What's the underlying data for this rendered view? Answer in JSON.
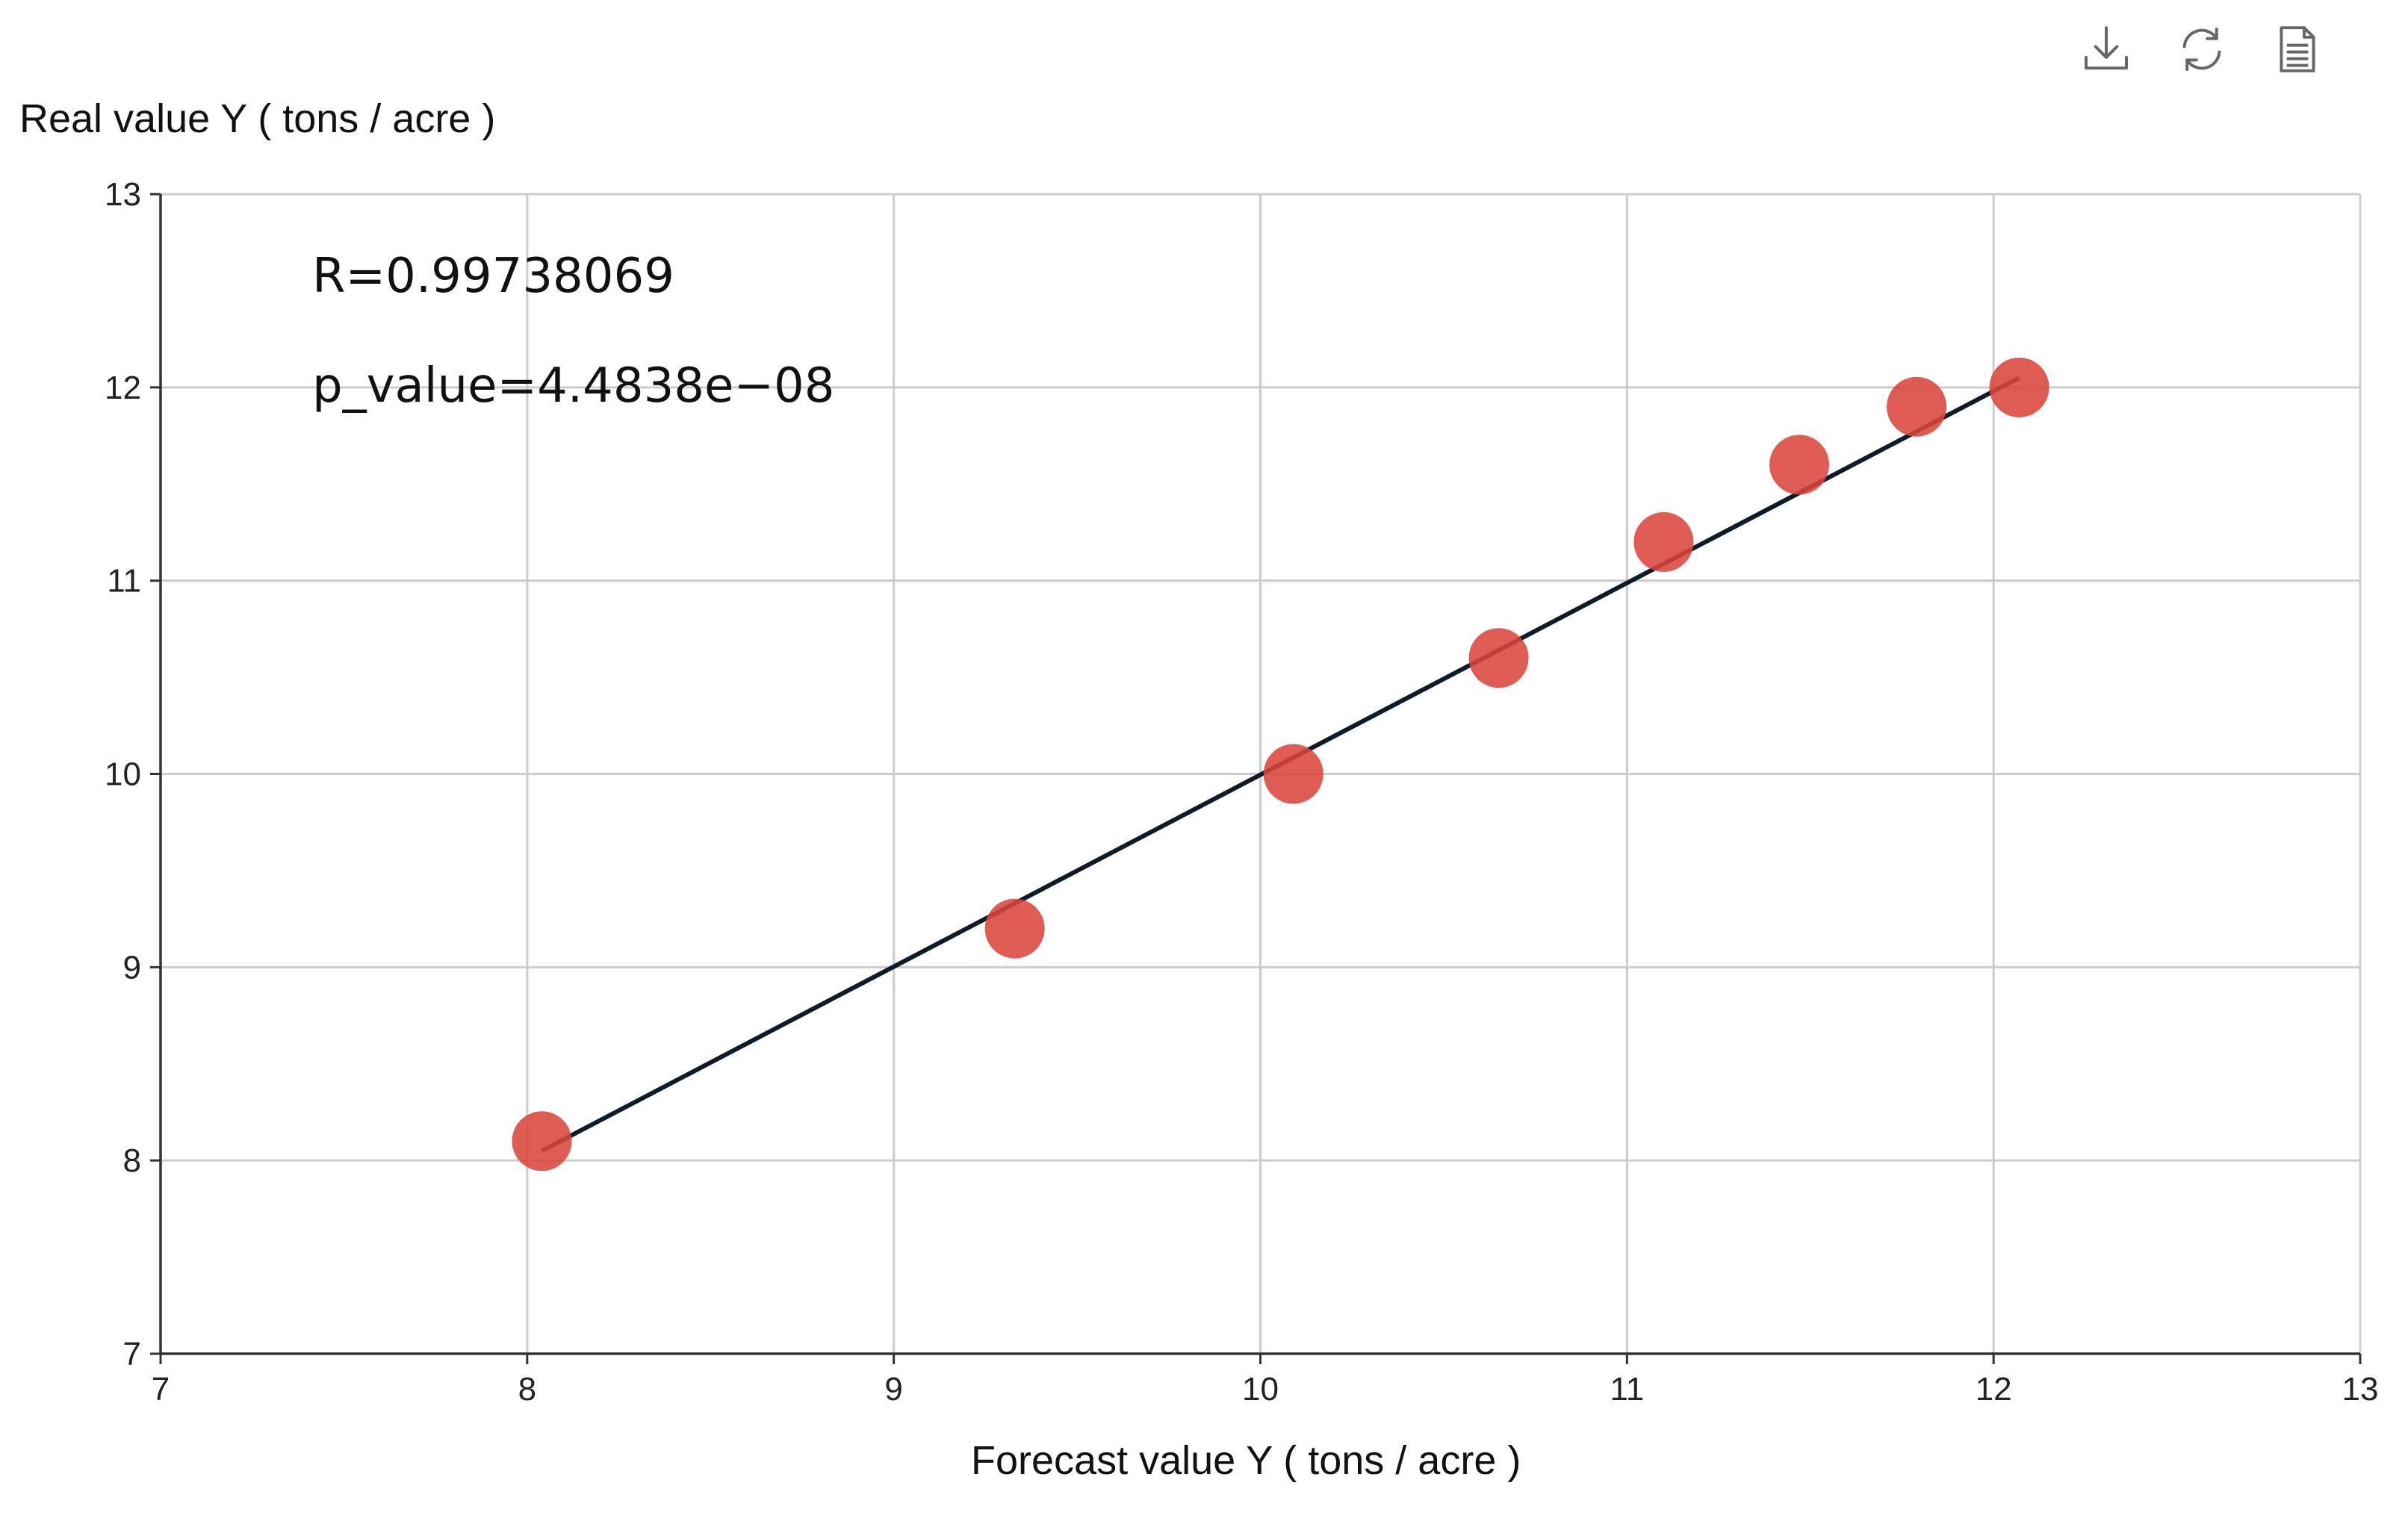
{
  "toolbar": {
    "download_icon": "download-icon",
    "refresh_icon": "refresh-icon",
    "data_view_icon": "document-icon"
  },
  "chart_data": {
    "type": "scatter",
    "xlabel": "Forecast value Y ( tons / acre )",
    "ylabel": "Real value Y ( tons / acre )",
    "xlim": [
      7,
      13
    ],
    "ylim": [
      7,
      13
    ],
    "x_ticks": [
      "7",
      "8",
      "9",
      "10",
      "11",
      "12",
      "13"
    ],
    "y_ticks": [
      "7",
      "8",
      "9",
      "10",
      "11",
      "12",
      "13"
    ],
    "grid": true,
    "annotations": [
      "R=0.99738069",
      "p_value=4.4838e−08"
    ],
    "series": [
      {
        "x": [
          8.04,
          9.33,
          10.09,
          10.65,
          11.1,
          11.47,
          11.79,
          12.07
        ],
        "y": [
          8.1,
          9.2,
          10.0,
          10.6,
          11.2,
          11.6,
          11.9,
          12.0
        ],
        "color": "#d9453b"
      }
    ],
    "fit_line": {
      "x": [
        8.04,
        12.07
      ],
      "y": [
        8.05,
        12.05
      ],
      "color": "#0d1b2a"
    }
  }
}
